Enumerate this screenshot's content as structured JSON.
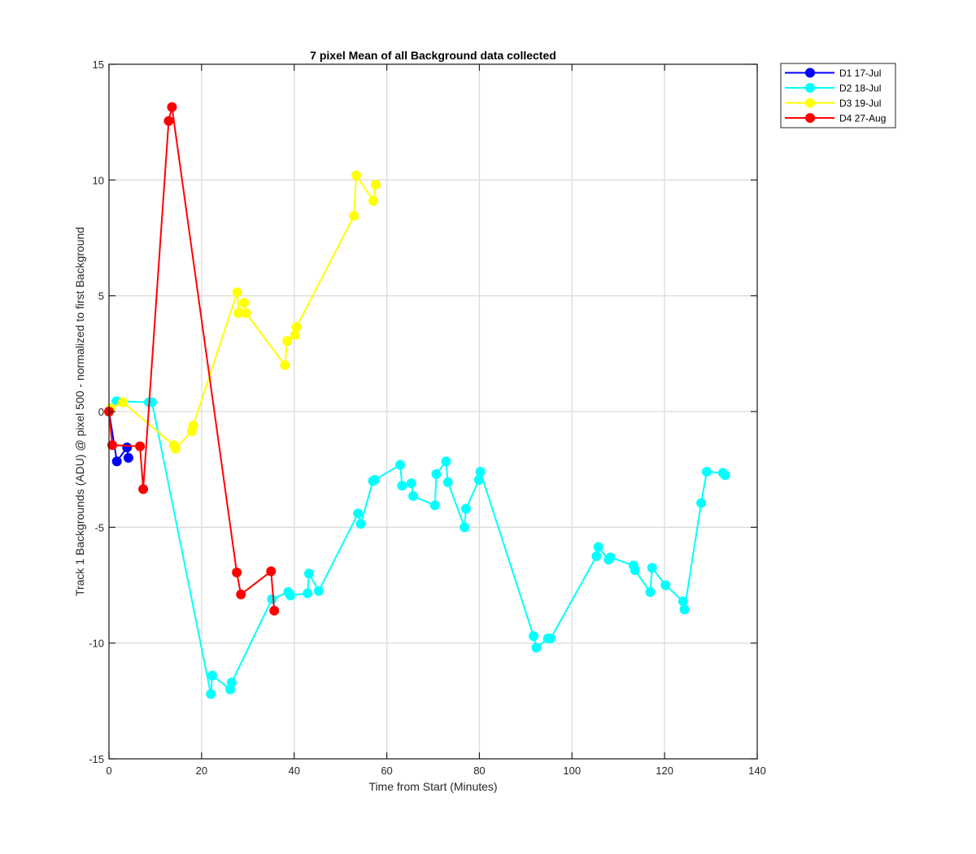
{
  "chart_data": {
    "type": "line",
    "title": "7 pixel Mean of all Background data collected",
    "xlabel": "Time from Start (Minutes)",
    "ylabel": "Track 1 Backgrounds (ADU) @ pixel 500 - normalized to first Background",
    "xlim": [
      0,
      140
    ],
    "ylim": [
      -15,
      15
    ],
    "xticks": [
      0,
      20,
      40,
      60,
      80,
      100,
      120,
      140
    ],
    "yticks": [
      -15,
      -10,
      -5,
      0,
      5,
      10,
      15
    ],
    "xtick_labels": [
      "0",
      "20",
      "40",
      "60",
      "80",
      "100",
      "120",
      "140"
    ],
    "ytick_labels": [
      "-15",
      "-10",
      "-5",
      "0",
      "5",
      "10",
      "15"
    ],
    "grid": true,
    "legend_position": "outside-top-right",
    "series": [
      {
        "name": "D1 17-Jul",
        "color": "#0000ff",
        "x": [
          0,
          1.7,
          3.9,
          4.2
        ],
        "y": [
          0,
          -2.15,
          -1.55,
          -2.0
        ]
      },
      {
        "name": "D2 18-Jul",
        "color": "#00ffff",
        "x": [
          0,
          1.6,
          8.6,
          9.3,
          22.0,
          22.3,
          26.2,
          26.5,
          35.2,
          38.7,
          39.1,
          39.2,
          42.9,
          43.2,
          45.3,
          53.8,
          54.4,
          57.0,
          57.4,
          62.9,
          63.3,
          65.3,
          65.7,
          70.4,
          70.7,
          72.8,
          73.2,
          76.8,
          77.1,
          79.9,
          80.2,
          91.7,
          92.3,
          94.8,
          95.4,
          105.3,
          105.7,
          107.9,
          108.3,
          113.3,
          113.6,
          116.9,
          117.3,
          120.2,
          124.0,
          124.3,
          127.9,
          129.1,
          132.6,
          133.1
        ],
        "y": [
          0,
          0.45,
          0.4,
          0.4,
          -12.2,
          -11.4,
          -12.0,
          -11.7,
          -8.1,
          -7.8,
          -7.9,
          -7.95,
          -7.85,
          -7.0,
          -7.75,
          -4.4,
          -4.85,
          -3.0,
          -2.95,
          -2.3,
          -3.2,
          -3.1,
          -3.65,
          -4.05,
          -2.7,
          -2.15,
          -3.05,
          -5.0,
          -4.2,
          -2.95,
          -2.6,
          -9.7,
          -10.2,
          -9.8,
          -9.8,
          -6.25,
          -5.85,
          -6.4,
          -6.3,
          -6.65,
          -6.85,
          -7.8,
          -6.75,
          -7.5,
          -8.2,
          -8.55,
          -3.95,
          -2.6,
          -2.65,
          -2.75
        ]
      },
      {
        "name": "D3 19-Jul",
        "color": "#ffff00",
        "x": [
          0,
          0.4,
          3.0,
          14.0,
          14.4,
          17.9,
          18.2,
          27.7,
          28.0,
          29.2,
          29.6,
          38.0,
          38.5,
          40.2,
          40.5,
          52.9,
          53.4,
          57.1,
          57.6
        ],
        "y": [
          0,
          0.15,
          0.4,
          -1.45,
          -1.6,
          -0.85,
          -0.6,
          5.15,
          4.25,
          4.7,
          4.25,
          2.0,
          3.05,
          3.3,
          3.65,
          8.45,
          10.2,
          9.1,
          9.8
        ]
      },
      {
        "name": "D4 27-Aug",
        "color": "#ff0000",
        "x": [
          0,
          0.7,
          6.7,
          7.4,
          12.9,
          13.6,
          27.6,
          28.5,
          35.0,
          35.7
        ],
        "y": [
          0,
          -1.45,
          -1.5,
          -3.35,
          12.55,
          13.15,
          -6.95,
          -7.9,
          -6.9,
          -8.6
        ]
      }
    ]
  }
}
